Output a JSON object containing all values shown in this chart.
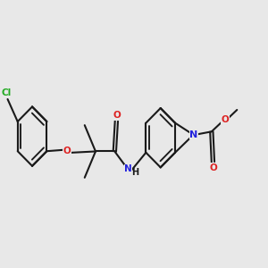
{
  "bg_color": "#e8e8e8",
  "bond_color": "#1a1a1a",
  "cl_color": "#22aa22",
  "o_color": "#dd2222",
  "n_color": "#2222dd",
  "lw": 1.5,
  "figsize": [
    3.0,
    3.0
  ],
  "dpi": 100,
  "font_size": 7.5,
  "xlim": [
    0.0,
    1.0
  ],
  "ylim": [
    0.25,
    0.82
  ]
}
